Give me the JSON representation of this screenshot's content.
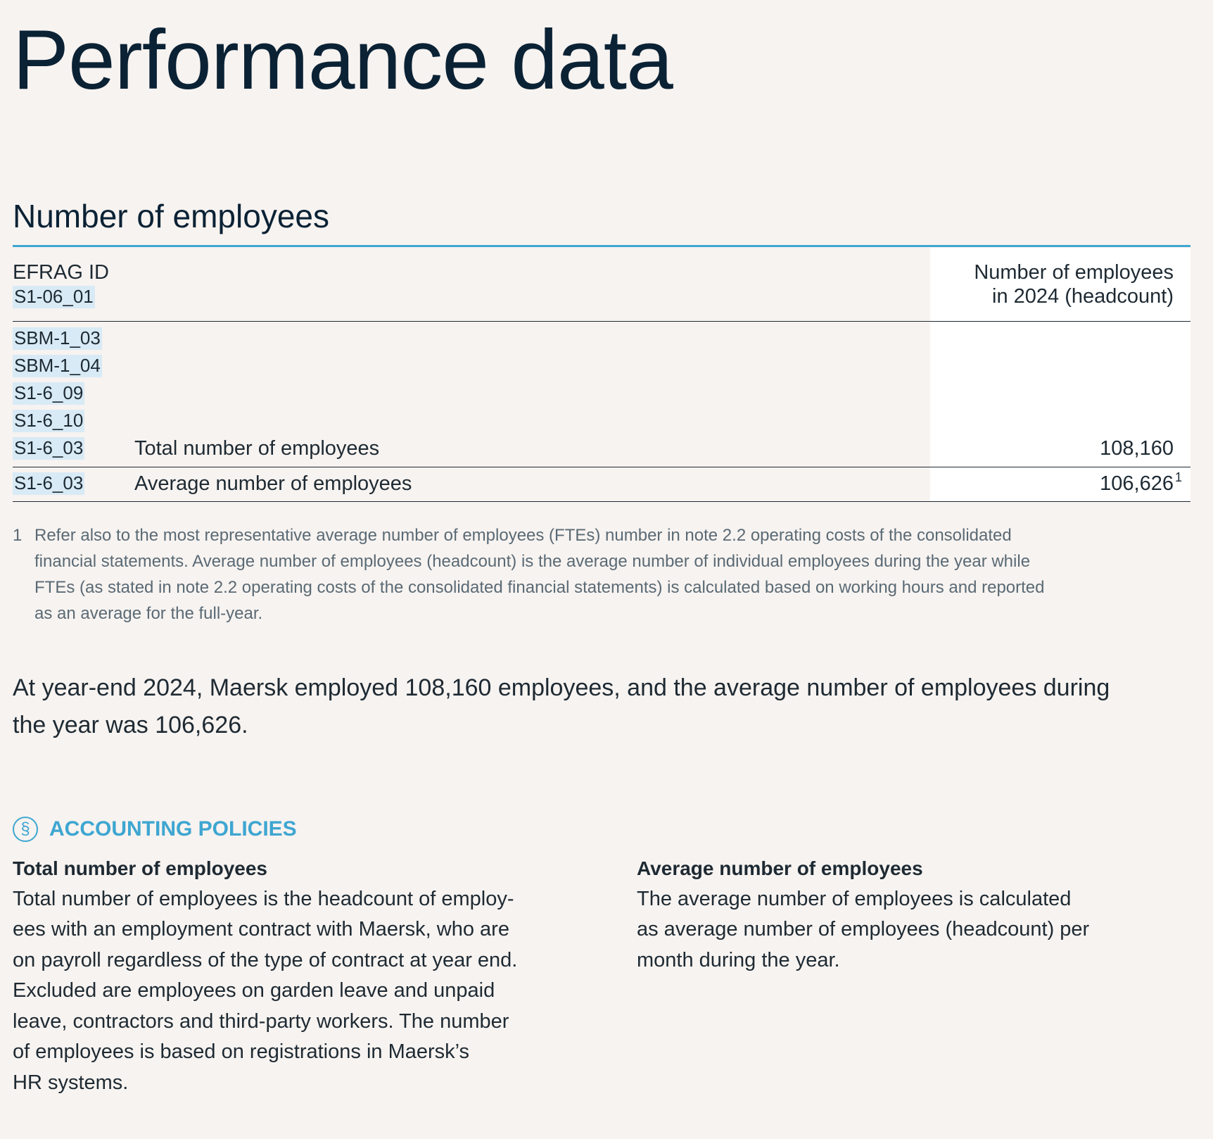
{
  "header": {
    "title": "Performance data"
  },
  "section": {
    "title": "Number of employees"
  },
  "table": {
    "header": {
      "id_label": "EFRAG ID",
      "id": "S1-06_01",
      "column": [
        "Number of employees",
        "in 2024 (headcount)"
      ]
    },
    "rows": [
      {
        "ids": [
          "SBM-1_03",
          "SBM-1_04",
          "S1-6_09",
          "S1-6_10",
          "S1-6_03"
        ],
        "label": "Total number of employees",
        "value": "108,160"
      },
      {
        "ids": [
          "S1-6_03"
        ],
        "label": "Average number of employees",
        "value": "106,626",
        "note": "1"
      }
    ]
  },
  "footnote": {
    "marker": "1",
    "lines": [
      "Refer also to the most representative average number of employees (FTEs) number in note 2.2 operating costs of the consolidated",
      "financial statements. Average number of employees (headcount) is the average number of individual employees during the year while",
      "FTEs (as stated in note 2.2 operating costs of the consolidated financial statements) is calculated based on working hours and reported",
      "as an average for the full-year."
    ]
  },
  "summary": {
    "lines": [
      "At year-end 2024, Maersk employed 108,160 employees, and the average number of employees during",
      "the year was 106,626."
    ]
  },
  "policies": {
    "icon": "§",
    "title": "ACCOUNTING POLICIES",
    "columns": [
      {
        "heading": "Total number of employees",
        "lines": [
          "Total number of employees is the headcount of employ-",
          "ees with an employment contract with Maersk, who are",
          "on payroll regardless of the type of contract at year end.",
          "Excluded are employees on garden leave and unpaid",
          "leave, contractors and third-party workers. The number",
          "of employees is based on registrations in Maersk’s",
          "HR systems."
        ]
      },
      {
        "heading": "Average number of employees",
        "lines": [
          "The average number of employees is calculated",
          "as average number of employees (headcount) per",
          "month during the year."
        ]
      }
    ]
  }
}
